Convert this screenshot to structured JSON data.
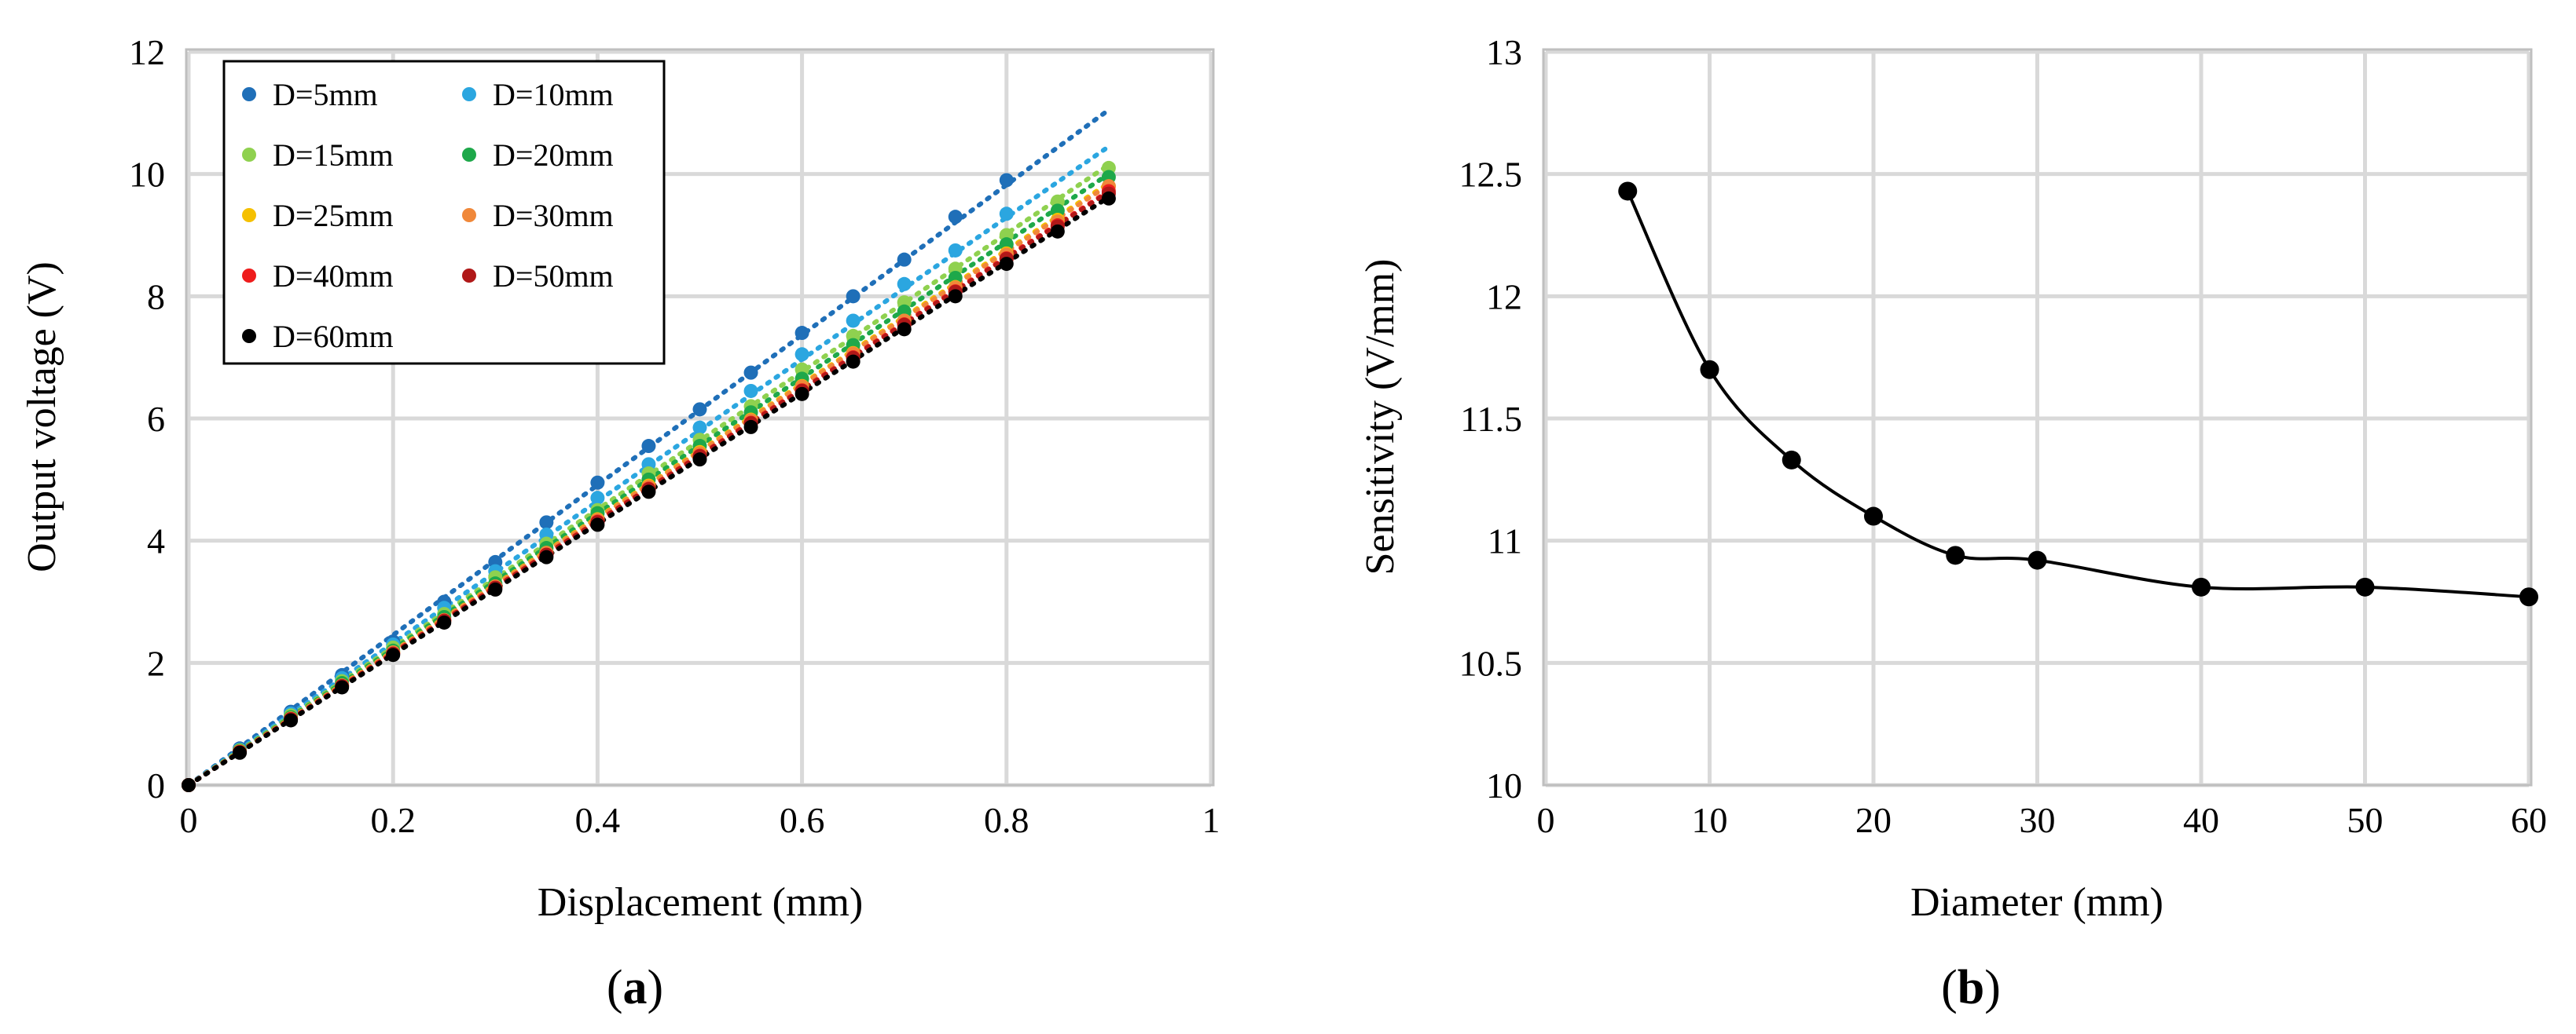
{
  "chart_data": [
    {
      "id": "a",
      "type": "scatter",
      "panel_label": "a",
      "title": "",
      "xlabel": "Displacement (mm)",
      "ylabel": "Output voltage (V)",
      "xlim": [
        0,
        1
      ],
      "ylim": [
        0,
        12
      ],
      "xticks": [
        0,
        0.2,
        0.4,
        0.6,
        0.8,
        1
      ],
      "xtick_labels": [
        "0",
        "0.2",
        "0.4",
        "0.6",
        "0.8",
        "1"
      ],
      "yticks": [
        0,
        2,
        4,
        6,
        8,
        10,
        12
      ],
      "ytick_labels": [
        "0",
        "2",
        "4",
        "6",
        "8",
        "10",
        "12"
      ],
      "grid": true,
      "legend_position": "top-left",
      "trendlines": "dotted linear",
      "series": [
        {
          "name": "D=5mm",
          "color": "#1f6fb8",
          "x": [
            0,
            0.05,
            0.1,
            0.15,
            0.2,
            0.25,
            0.3,
            0.35,
            0.4,
            0.45,
            0.5,
            0.55,
            0.6,
            0.65,
            0.7,
            0.75,
            0.8
          ],
          "y": [
            0,
            0.6,
            1.2,
            1.8,
            2.35,
            3.0,
            3.65,
            4.3,
            4.95,
            5.55,
            6.15,
            6.75,
            7.4,
            8.0,
            8.6,
            9.3,
            9.9
          ],
          "trend_end": [
            0.9,
            11.05
          ]
        },
        {
          "name": "D=10mm",
          "color": "#2ba6e0",
          "x": [
            0,
            0.05,
            0.1,
            0.15,
            0.2,
            0.25,
            0.3,
            0.35,
            0.4,
            0.45,
            0.5,
            0.55,
            0.6,
            0.65,
            0.7,
            0.75,
            0.8
          ],
          "y": [
            0,
            0.58,
            1.17,
            1.75,
            2.3,
            2.9,
            3.5,
            4.1,
            4.7,
            5.25,
            5.85,
            6.45,
            7.05,
            7.6,
            8.2,
            8.75,
            9.35
          ],
          "trend_end": [
            0.9,
            10.45
          ]
        },
        {
          "name": "D=15mm",
          "color": "#8fd14f",
          "x": [
            0,
            0.05,
            0.1,
            0.15,
            0.2,
            0.25,
            0.3,
            0.35,
            0.4,
            0.45,
            0.5,
            0.55,
            0.6,
            0.65,
            0.7,
            0.75,
            0.8,
            0.85,
            0.9
          ],
          "y": [
            0,
            0.57,
            1.14,
            1.7,
            2.25,
            2.8,
            3.4,
            3.95,
            4.5,
            5.1,
            5.65,
            6.2,
            6.8,
            7.35,
            7.9,
            8.45,
            9.0,
            9.55,
            10.1
          ],
          "trend_end": [
            0.9,
            10.15
          ]
        },
        {
          "name": "D=20mm",
          "color": "#1ea84a",
          "x": [
            0,
            0.05,
            0.1,
            0.15,
            0.2,
            0.25,
            0.3,
            0.35,
            0.4,
            0.45,
            0.5,
            0.55,
            0.6,
            0.65,
            0.7,
            0.75,
            0.8,
            0.85,
            0.9
          ],
          "y": [
            0,
            0.56,
            1.11,
            1.67,
            2.2,
            2.75,
            3.3,
            3.88,
            4.45,
            5.0,
            5.55,
            6.1,
            6.65,
            7.2,
            7.75,
            8.3,
            8.85,
            9.4,
            9.95
          ],
          "trend_end": [
            0.9,
            10.0
          ]
        },
        {
          "name": "D=25mm",
          "color": "#f5c000",
          "x": [
            0,
            0.05,
            0.1,
            0.15,
            0.2,
            0.25,
            0.3,
            0.35,
            0.4,
            0.45,
            0.5,
            0.55,
            0.6,
            0.65,
            0.7,
            0.75,
            0.8,
            0.85,
            0.9
          ],
          "y": [
            0,
            0.55,
            1.09,
            1.63,
            2.17,
            2.7,
            3.25,
            3.8,
            4.35,
            4.9,
            5.45,
            5.98,
            6.53,
            7.07,
            7.6,
            8.15,
            8.7,
            9.25,
            9.8
          ],
          "trend_end": [
            0.9,
            9.85
          ]
        },
        {
          "name": "D=30mm",
          "color": "#f0883a",
          "x": [
            0,
            0.05,
            0.1,
            0.15,
            0.2,
            0.25,
            0.3,
            0.35,
            0.4,
            0.45,
            0.5,
            0.55,
            0.6,
            0.65,
            0.7,
            0.75,
            0.8,
            0.85,
            0.9
          ],
          "y": [
            0,
            0.55,
            1.09,
            1.63,
            2.17,
            2.7,
            3.25,
            3.8,
            4.34,
            4.88,
            5.43,
            5.97,
            6.52,
            7.06,
            7.6,
            8.14,
            8.68,
            9.22,
            9.8
          ],
          "trend_end": [
            0.9,
            9.82
          ]
        },
        {
          "name": "D=40mm",
          "color": "#ee1c1c",
          "x": [
            0,
            0.05,
            0.1,
            0.15,
            0.2,
            0.25,
            0.3,
            0.35,
            0.4,
            0.45,
            0.5,
            0.55,
            0.6,
            0.65,
            0.7,
            0.75,
            0.8,
            0.85,
            0.9
          ],
          "y": [
            0,
            0.54,
            1.08,
            1.62,
            2.15,
            2.69,
            3.23,
            3.77,
            4.31,
            4.85,
            5.39,
            5.93,
            6.46,
            7.0,
            7.54,
            8.08,
            8.62,
            9.16,
            9.72
          ],
          "trend_end": [
            0.9,
            9.72
          ]
        },
        {
          "name": "D=50mm",
          "color": "#b01818",
          "x": [
            0,
            0.05,
            0.1,
            0.15,
            0.2,
            0.25,
            0.3,
            0.35,
            0.4,
            0.45,
            0.5,
            0.55,
            0.6,
            0.65,
            0.7,
            0.75,
            0.8,
            0.85,
            0.9
          ],
          "y": [
            0,
            0.54,
            1.08,
            1.62,
            2.15,
            2.69,
            3.23,
            3.77,
            4.3,
            4.84,
            5.38,
            5.92,
            6.45,
            6.99,
            7.53,
            8.07,
            8.61,
            9.14,
            9.68
          ],
          "trend_end": [
            0.9,
            9.7
          ]
        },
        {
          "name": "D=60mm",
          "color": "#000000",
          "x": [
            0,
            0.05,
            0.1,
            0.15,
            0.2,
            0.25,
            0.3,
            0.35,
            0.4,
            0.45,
            0.5,
            0.55,
            0.6,
            0.65,
            0.7,
            0.75,
            0.8,
            0.85,
            0.9
          ],
          "y": [
            0,
            0.53,
            1.06,
            1.6,
            2.13,
            2.66,
            3.2,
            3.73,
            4.26,
            4.8,
            5.33,
            5.86,
            6.4,
            6.93,
            7.46,
            8.0,
            8.53,
            9.06,
            9.6
          ],
          "trend_end": [
            0.9,
            9.62
          ]
        }
      ]
    },
    {
      "id": "b",
      "type": "line",
      "panel_label": "b",
      "title": "",
      "xlabel": "Diameter (mm)",
      "ylabel": "Sensitivity (V/mm)",
      "xlim": [
        0,
        60
      ],
      "ylim": [
        10,
        13
      ],
      "xticks": [
        0,
        10,
        20,
        30,
        40,
        50,
        60
      ],
      "xtick_labels": [
        "0",
        "10",
        "20",
        "30",
        "40",
        "50",
        "60"
      ],
      "yticks": [
        10,
        10.5,
        11,
        11.5,
        12,
        12.5,
        13
      ],
      "ytick_labels": [
        "10",
        "10.5",
        "11",
        "11.5",
        "12",
        "12.5",
        "13"
      ],
      "grid": true,
      "smooth": true,
      "series": [
        {
          "name": "Sensitivity",
          "color": "#000000",
          "x": [
            5,
            10,
            15,
            20,
            25,
            30,
            40,
            50,
            60
          ],
          "y": [
            12.43,
            11.7,
            11.33,
            11.1,
            10.94,
            10.92,
            10.81,
            10.81,
            10.77
          ]
        }
      ]
    }
  ]
}
